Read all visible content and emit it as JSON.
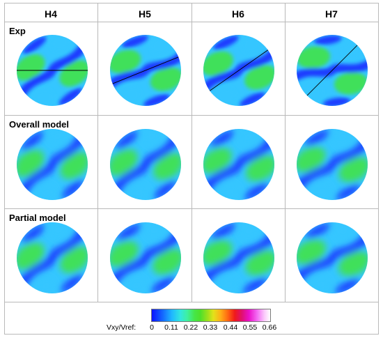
{
  "columns": [
    "H4",
    "H5",
    "H6",
    "H7"
  ],
  "rows": [
    "Exp",
    "Overall model",
    "Partial model"
  ],
  "colorbar": {
    "label": "Vxy/Vref:",
    "ticks": [
      "0",
      "0.11",
      "0.22",
      "0.33",
      "0.44",
      "0.55",
      "0.66"
    ],
    "min": 0,
    "max": 0.66
  },
  "colors": {
    "border": "#b9b9b9",
    "field_low": "#1f3bff",
    "field_mid": "#35c6ff",
    "field_high": "#3fe05a",
    "experiment_line": "#000000"
  },
  "disks": [
    {
      "name": "disk-exp-h4",
      "kind": "exp",
      "band_angle_deg": -35,
      "line_angle_deg": 0
    },
    {
      "name": "disk-exp-h5",
      "kind": "exp",
      "band_angle_deg": -20,
      "line_angle_deg": -22
    },
    {
      "name": "disk-exp-h6",
      "kind": "exp",
      "band_angle_deg": -25,
      "line_angle_deg": -35
    },
    {
      "name": "disk-exp-h7",
      "kind": "exp",
      "band_angle_deg": -8,
      "line_angle_deg": -45
    },
    {
      "name": "disk-overall-h4",
      "kind": "model",
      "band_angle_deg": -40
    },
    {
      "name": "disk-overall-h5",
      "kind": "model",
      "band_angle_deg": -38
    },
    {
      "name": "disk-overall-h6",
      "kind": "model",
      "band_angle_deg": -33
    },
    {
      "name": "disk-overall-h7",
      "kind": "model",
      "band_angle_deg": -30
    },
    {
      "name": "disk-partial-h4",
      "kind": "model",
      "band_angle_deg": -38
    },
    {
      "name": "disk-partial-h5",
      "kind": "model",
      "band_angle_deg": -33
    },
    {
      "name": "disk-partial-h6",
      "kind": "model",
      "band_angle_deg": -30
    },
    {
      "name": "disk-partial-h7",
      "kind": "model",
      "band_angle_deg": -28
    }
  ]
}
